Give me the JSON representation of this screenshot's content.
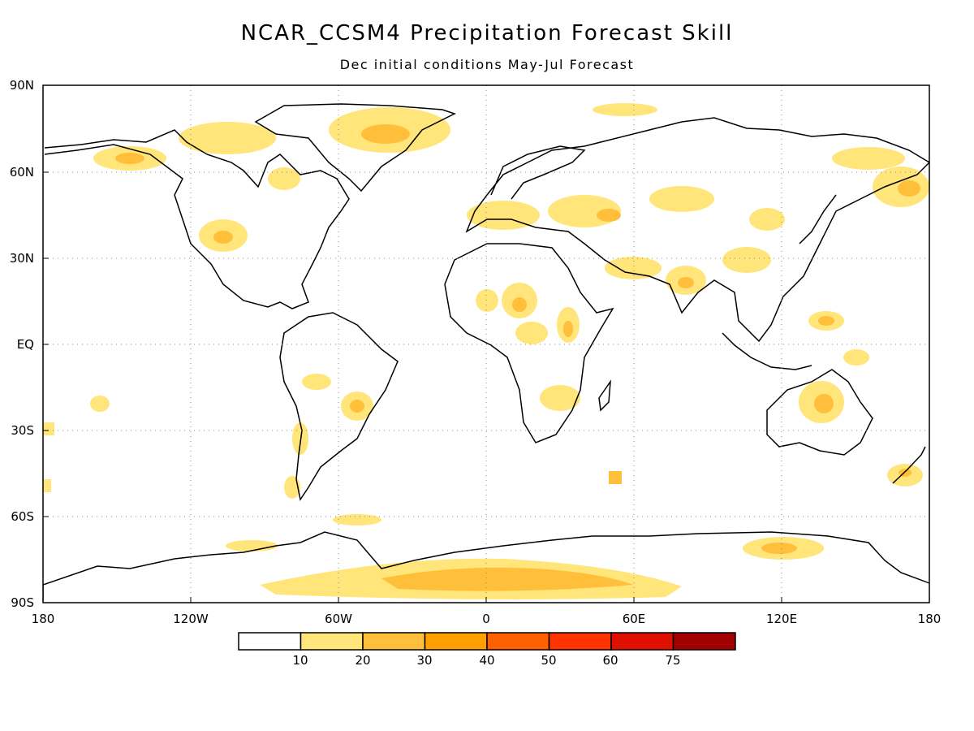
{
  "title": "NCAR_CCSM4 Precipitation Forecast Skill",
  "subtitle": "Dec initial conditions   May-Jul Forecast",
  "map": {
    "lat_ticks": [
      "90N",
      "60N",
      "30N",
      "EQ",
      "30S",
      "60S",
      "90S"
    ],
    "lon_ticks": [
      "180",
      "120W",
      "60W",
      "0",
      "60E",
      "120E",
      "180"
    ],
    "lat_range": [
      -90,
      90
    ],
    "lon_range": [
      -180,
      180
    ],
    "grid": "dotted"
  },
  "legend": {
    "labels": [
      "10",
      "20",
      "30",
      "40",
      "50",
      "60",
      "75"
    ],
    "colors": [
      "#ffffff",
      "#ffe57a",
      "#ffbf3a",
      "#ffa000",
      "#ff6000",
      "#ff3300",
      "#e01000",
      "#a00000"
    ]
  }
}
